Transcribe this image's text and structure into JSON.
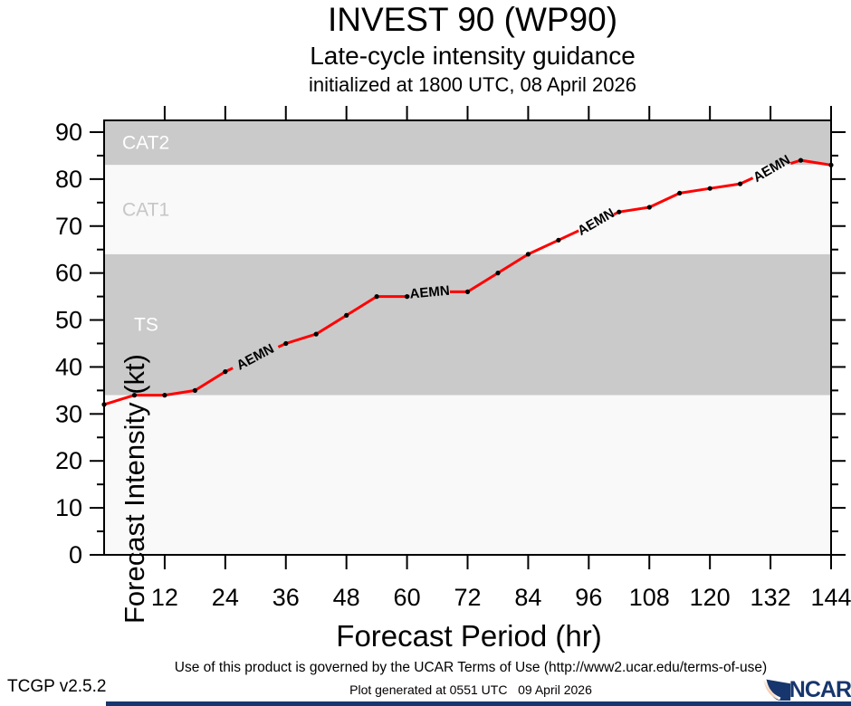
{
  "header": {
    "title": "INVEST 90 (WP90)",
    "subtitle": "Late-cycle intensity guidance",
    "init_line": "initialized at 1800 UTC, 08 April 2026"
  },
  "chart_data": {
    "type": "line",
    "title": "INVEST 90 (WP90) late-cycle intensity guidance",
    "xlabel": "Forecast Period (hr)",
    "ylabel": "Forecast Intensity (kt)",
    "xlim": [
      0,
      144
    ],
    "ylim": [
      0,
      92.5
    ],
    "grid": false,
    "x_ticks": [
      12,
      24,
      36,
      48,
      60,
      72,
      84,
      96,
      108,
      120,
      132,
      144
    ],
    "y_ticks_major": [
      0,
      10,
      20,
      30,
      40,
      50,
      60,
      70,
      80,
      90
    ],
    "y_ticks_minor": [
      5,
      15,
      25,
      35,
      45,
      55,
      65,
      75,
      85
    ],
    "bands": [
      {
        "label": "CAT2",
        "from": 83,
        "to": 92.5,
        "color": "#cacaca",
        "label_color": "#ffffff",
        "label_pad": 20
      },
      {
        "label": "CAT1",
        "from": 64,
        "to": 83,
        "color": "#f9f9f9",
        "label_color": "#c6c6c6",
        "label_pad": 20
      },
      {
        "label": "TS",
        "from": 34,
        "to": 64,
        "color": "#cacaca",
        "label_color": "#ffffff",
        "label_pad": 33
      },
      {
        "label": "",
        "from": 0,
        "to": 34,
        "color": "#f9f9f9",
        "label_color": "#ffffff",
        "label_pad": 20
      }
    ],
    "series": [
      {
        "name": "AEMN",
        "color": "#ff0000",
        "marker_color": "#000000",
        "x": [
          0,
          6,
          12,
          18,
          24,
          30,
          36,
          42,
          48,
          54,
          60,
          66,
          72,
          78,
          84,
          90,
          96,
          102,
          108,
          114,
          120,
          126,
          132,
          138,
          144
        ],
        "values": [
          32,
          34,
          34,
          35,
          39,
          42,
          45,
          47,
          51,
          55,
          55,
          56,
          56,
          60,
          64,
          67,
          70,
          73,
          74,
          77,
          78,
          79,
          82,
          84,
          83
        ],
        "hidden_marker_x": [
          30,
          66,
          96,
          132
        ]
      }
    ],
    "line_labels": [
      {
        "text": "AEMN",
        "hour": 30,
        "rotation": -28,
        "gap": [
          25.5,
          34.5
        ]
      },
      {
        "text": "AEMN",
        "hour": 64.5,
        "rotation": -5,
        "gap": [
          60.5,
          68.5
        ]
      },
      {
        "text": "AEMN",
        "hour": 97.5,
        "rotation": -30,
        "gap": [
          94,
          101
        ]
      },
      {
        "text": "AEMN",
        "hour": 132.3,
        "rotation": -30,
        "gap": [
          128.5,
          136
        ]
      }
    ]
  },
  "footer": {
    "terms": "Use of this product is governed by the UCAR Terms of Use (http://www2.ucar.edu/terms-of-use)",
    "generated": "Plot generated at 0551 UTC   09 April 2026",
    "version": "TCGP v2.5.2",
    "logo_text": "NCAR"
  },
  "colors": {
    "line": "#ff0000",
    "navy": "#17366d",
    "band_gray": "#cacaca",
    "band_light": "#f9f9f9"
  }
}
